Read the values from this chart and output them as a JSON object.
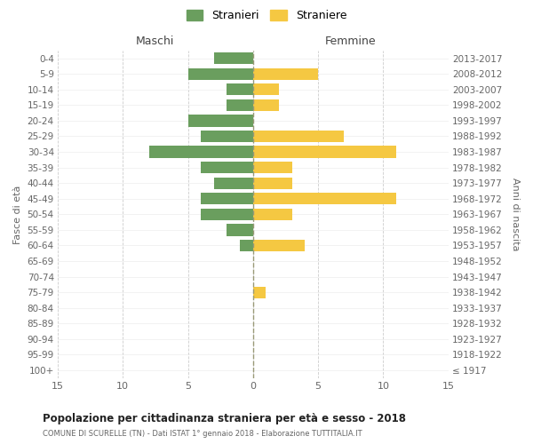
{
  "age_groups": [
    "100+",
    "95-99",
    "90-94",
    "85-89",
    "80-84",
    "75-79",
    "70-74",
    "65-69",
    "60-64",
    "55-59",
    "50-54",
    "45-49",
    "40-44",
    "35-39",
    "30-34",
    "25-29",
    "20-24",
    "15-19",
    "10-14",
    "5-9",
    "0-4"
  ],
  "birth_years": [
    "≤ 1917",
    "1918-1922",
    "1923-1927",
    "1928-1932",
    "1933-1937",
    "1938-1942",
    "1943-1947",
    "1948-1952",
    "1953-1957",
    "1958-1962",
    "1963-1967",
    "1968-1972",
    "1973-1977",
    "1978-1982",
    "1983-1987",
    "1988-1992",
    "1993-1997",
    "1998-2002",
    "2003-2007",
    "2008-2012",
    "2013-2017"
  ],
  "maschi": [
    0,
    0,
    0,
    0,
    0,
    0,
    0,
    0,
    1,
    2,
    4,
    4,
    3,
    4,
    8,
    4,
    5,
    2,
    2,
    5,
    3
  ],
  "femmine": [
    0,
    0,
    0,
    0,
    0,
    1,
    0,
    0,
    4,
    0,
    3,
    11,
    3,
    3,
    11,
    7,
    0,
    2,
    2,
    5,
    0
  ],
  "color_maschi": "#6a9e5e",
  "color_femmine": "#f5c842",
  "title": "Popolazione per cittadinanza straniera per età e sesso - 2018",
  "subtitle": "COMUNE DI SCURELLE (TN) - Dati ISTAT 1° gennaio 2018 - Elaborazione TUTTITALIA.IT",
  "ylabel_left": "Fasce di età",
  "ylabel_right": "Anni di nascita",
  "xlabel_maschi": "Maschi",
  "xlabel_femmine": "Femmine",
  "legend_maschi": "Stranieri",
  "legend_femmine": "Straniere",
  "xlim": 15,
  "background_color": "#ffffff",
  "grid_color": "#cccccc"
}
